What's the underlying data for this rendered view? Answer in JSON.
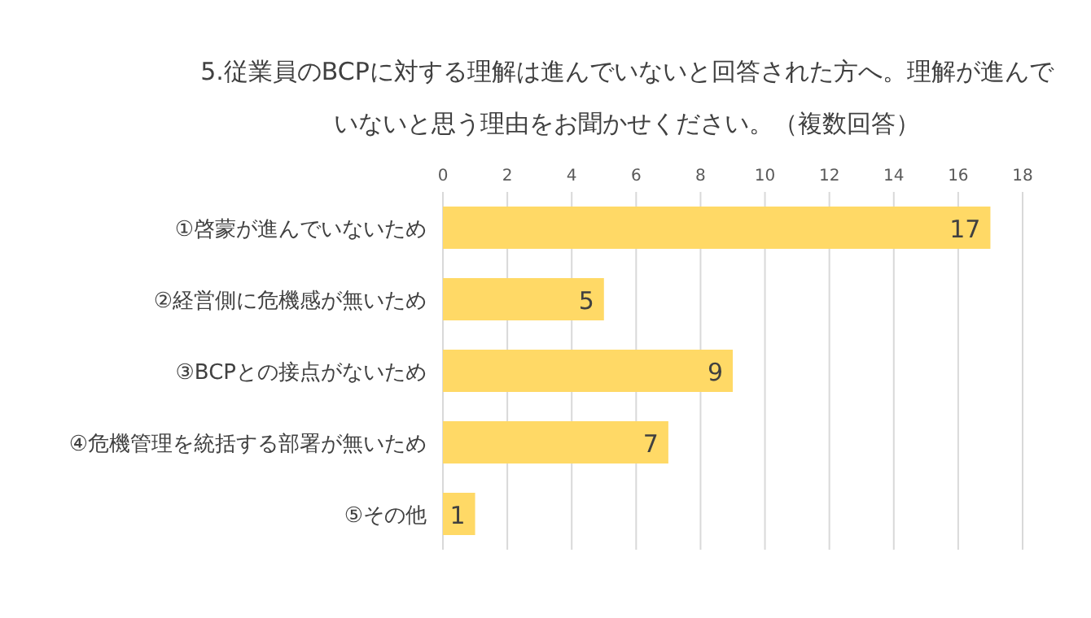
{
  "chart_data": {
    "type": "bar",
    "orientation": "horizontal",
    "title": "5.従業員のBCPに対する理解は進んでいないと回答された方へ。理解が進んでいないと思う理由をお聞かせください。（複数回答）",
    "categories": [
      "①啓蒙が進んでいないため",
      "②経営側に危機感が無いため",
      "③BCPとの接点がないため",
      "④危機管理を統括する部署が無いため",
      "⑤その他"
    ],
    "values": [
      17,
      5,
      9,
      7,
      1
    ],
    "color": "#ffd966",
    "xlim": [
      0,
      18
    ],
    "xticks": [
      0,
      2,
      4,
      6,
      8,
      10,
      12,
      14,
      16,
      18
    ],
    "grid": "x",
    "data_labels": true
  }
}
